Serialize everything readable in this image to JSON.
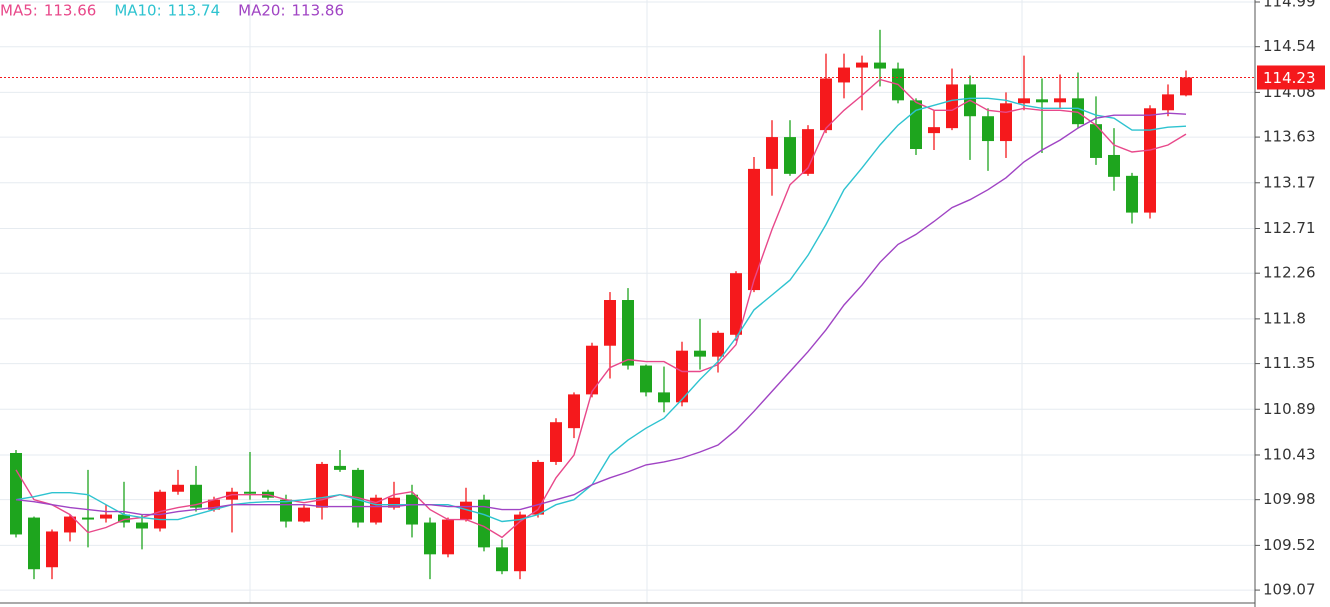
{
  "chart_data": {
    "type": "candlestick",
    "up_color": "#f5191c",
    "down_color": "#1ea51e",
    "open": [
      110.45,
      109.8,
      109.3,
      109.65,
      109.8,
      109.79,
      109.83,
      109.75,
      109.69,
      110.06,
      110.13,
      109.88,
      109.98,
      110.06,
      110.06,
      109.98,
      109.76,
      109.9,
      110.32,
      110.28,
      109.75,
      109.9,
      110.03,
      109.75,
      109.43,
      109.78,
      109.98,
      109.5,
      109.26,
      109.83,
      110.36,
      110.7,
      111.04,
      111.53,
      111.99,
      111.33,
      111.06,
      110.96,
      111.48,
      111.42,
      111.64,
      112.09,
      113.31,
      113.63,
      113.26,
      113.7,
      114.18,
      114.33,
      114.38,
      114.32,
      114.0,
      113.67,
      113.72,
      114.16,
      113.84,
      113.59,
      113.97,
      114.01,
      113.98,
      114.02,
      113.76,
      113.45,
      113.24,
      112.87,
      113.9,
      114.05
    ],
    "high": [
      110.48,
      109.81,
      109.68,
      109.83,
      110.28,
      109.93,
      110.16,
      109.83,
      110.08,
      110.28,
      110.32,
      110.01,
      110.1,
      110.46,
      110.08,
      110.03,
      109.93,
      110.36,
      110.48,
      110.3,
      110.03,
      110.16,
      110.13,
      109.8,
      109.8,
      110.1,
      110.03,
      109.58,
      109.86,
      110.38,
      110.8,
      111.06,
      111.56,
      112.07,
      112.11,
      111.34,
      111.32,
      111.57,
      111.8,
      111.68,
      112.28,
      113.43,
      113.8,
      113.8,
      113.75,
      114.47,
      114.47,
      114.45,
      114.71,
      114.38,
      114.02,
      113.9,
      114.32,
      114.25,
      113.92,
      114.08,
      114.45,
      114.22,
      114.26,
      114.28,
      114.04,
      113.72,
      113.27,
      113.95,
      114.16,
      114.3
    ],
    "low": [
      109.6,
      109.18,
      109.18,
      109.56,
      109.5,
      109.75,
      109.7,
      109.48,
      109.66,
      110.03,
      109.86,
      109.86,
      109.65,
      109.98,
      109.98,
      109.7,
      109.75,
      109.78,
      110.26,
      109.7,
      109.73,
      109.88,
      109.6,
      109.18,
      109.4,
      109.76,
      109.46,
      109.23,
      109.18,
      109.8,
      110.33,
      110.6,
      111.01,
      111.2,
      111.29,
      111.02,
      110.86,
      110.92,
      111.29,
      111.26,
      111.58,
      112.07,
      113.04,
      113.24,
      113.24,
      113.67,
      114.02,
      113.9,
      114.14,
      113.97,
      113.45,
      113.5,
      113.7,
      113.4,
      113.29,
      113.42,
      113.9,
      113.47,
      113.92,
      113.72,
      113.35,
      113.09,
      112.76,
      112.81,
      113.84,
      114.04
    ],
    "close": [
      109.63,
      109.28,
      109.66,
      109.81,
      109.78,
      109.83,
      109.75,
      109.69,
      110.06,
      110.13,
      109.9,
      109.98,
      110.06,
      110.04,
      110.0,
      109.76,
      109.9,
      110.34,
      110.28,
      109.75,
      110.0,
      110.0,
      109.73,
      109.43,
      109.78,
      109.96,
      109.5,
      109.26,
      109.83,
      110.36,
      110.76,
      111.04,
      111.53,
      111.99,
      111.33,
      111.06,
      110.96,
      111.48,
      111.42,
      111.66,
      112.26,
      113.31,
      113.63,
      113.26,
      113.71,
      114.22,
      114.33,
      114.38,
      114.32,
      114.0,
      113.51,
      113.73,
      114.16,
      113.84,
      113.59,
      113.97,
      114.02,
      113.98,
      114.02,
      113.76,
      113.42,
      113.23,
      112.87,
      113.92,
      114.06,
      114.23
    ],
    "series": [
      {
        "name": "MA5:",
        "color": "#e8488a",
        "values": [
          110.28,
          109.98,
          109.93,
          109.83,
          109.65,
          109.7,
          109.78,
          109.8,
          109.86,
          109.9,
          109.93,
          109.98,
          110.03,
          110.03,
          110.03,
          109.98,
          109.95,
          109.98,
          110.03,
          110.0,
          109.95,
          110.03,
          110.06,
          109.88,
          109.78,
          109.78,
          109.71,
          109.6,
          109.76,
          109.88,
          110.2,
          110.43,
          111.07,
          111.31,
          111.39,
          111.37,
          111.37,
          111.27,
          111.27,
          111.34,
          111.54,
          112.19,
          112.7,
          113.15,
          113.32,
          113.72,
          113.9,
          114.05,
          114.21,
          114.16,
          113.98,
          113.9,
          113.9,
          114.0,
          113.9,
          113.88,
          113.92,
          113.9,
          113.9,
          113.88,
          113.75,
          113.55,
          113.48,
          113.5,
          113.55,
          113.66
        ]
      },
      {
        "name": "MA10:",
        "color": "#2ec3d0",
        "values": [
          109.98,
          110.01,
          110.05,
          110.05,
          110.03,
          109.93,
          109.83,
          109.8,
          109.78,
          109.78,
          109.83,
          109.88,
          109.93,
          109.95,
          109.96,
          109.96,
          109.98,
          110.0,
          110.03,
          109.98,
          109.93,
          109.93,
          109.93,
          109.93,
          109.93,
          109.88,
          109.83,
          109.76,
          109.78,
          109.83,
          109.93,
          109.98,
          110.13,
          110.43,
          110.58,
          110.7,
          110.8,
          110.99,
          111.19,
          111.37,
          111.61,
          111.89,
          112.04,
          112.19,
          112.44,
          112.75,
          113.1,
          113.32,
          113.55,
          113.75,
          113.9,
          113.95,
          114.0,
          114.02,
          114.02,
          114.0,
          113.95,
          113.92,
          113.92,
          113.92,
          113.85,
          113.82,
          113.7,
          113.7,
          113.73,
          113.74
        ]
      },
      {
        "name": "MA20:",
        "color": "#a044c4",
        "values": [
          109.98,
          109.96,
          109.93,
          109.9,
          109.88,
          109.86,
          109.86,
          109.83,
          109.83,
          109.86,
          109.88,
          109.9,
          109.93,
          109.93,
          109.93,
          109.93,
          109.93,
          109.91,
          109.91,
          109.91,
          109.91,
          109.91,
          109.93,
          109.93,
          109.91,
          109.91,
          109.91,
          109.88,
          109.88,
          109.93,
          109.98,
          110.03,
          110.13,
          110.2,
          110.26,
          110.33,
          110.36,
          110.4,
          110.46,
          110.53,
          110.68,
          110.87,
          111.07,
          111.27,
          111.47,
          111.69,
          111.94,
          112.14,
          112.37,
          112.55,
          112.65,
          112.78,
          112.92,
          113.0,
          113.1,
          113.22,
          113.38,
          113.5,
          113.6,
          113.72,
          113.82,
          113.85,
          113.85,
          113.85,
          113.87,
          113.86
        ]
      }
    ],
    "ylim": [
      108.94,
      115.01
    ],
    "yticks": [
      114.99,
      114.54,
      114.08,
      113.63,
      113.17,
      112.71,
      112.26,
      111.8,
      111.35,
      110.89,
      110.43,
      109.98,
      109.52,
      109.07
    ],
    "grid": true
  }
}
